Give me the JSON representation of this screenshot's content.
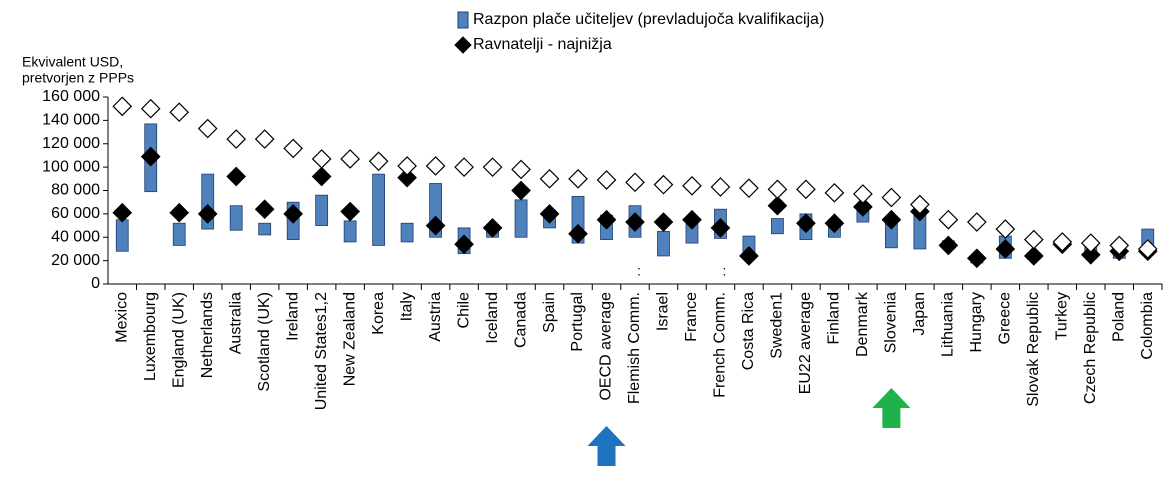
{
  "chart_data": {
    "type": "range_bar",
    "y_axis_title": [
      "Ekvivalent USD,",
      "pretvorjen z  PPPs"
    ],
    "categories": [
      "Mexico",
      "Luxembourg",
      "England (UK)",
      "Netherlands",
      "Australia",
      "Scotland (UK)",
      "Ireland",
      "United States1,2",
      "New Zealand",
      "Korea",
      "Italy",
      "Austria",
      "Chile",
      "Iceland",
      "Canada",
      "Spain",
      "Portugal",
      "OECD average",
      "Flemish Comm.",
      "Israel",
      "France",
      "French Comm.",
      "Costa Rica",
      "Sweden1",
      "EU22 average",
      "Finland",
      "Denmark",
      "Slovenia",
      "Japan",
      "Lithuania",
      "Hungary",
      "Greece",
      "Slovak Republic",
      "Turkey",
      "Czech Republic",
      "Poland",
      "Colombia"
    ],
    "category_notes": [
      null,
      null,
      null,
      null,
      null,
      null,
      null,
      null,
      null,
      null,
      null,
      null,
      null,
      null,
      null,
      null,
      null,
      null,
      ":",
      null,
      null,
      ":",
      null,
      null,
      null,
      null,
      null,
      null,
      null,
      null,
      null,
      null,
      null,
      null,
      null,
      null,
      null
    ],
    "series": [
      {
        "name": "Razpon plače učiteljev (prevladujoča kvalifikacija)",
        "kind": "range",
        "color": "#4f81bd",
        "values": [
          [
            28000,
            55000
          ],
          [
            79000,
            137000
          ],
          [
            33000,
            52000
          ],
          [
            47000,
            94000
          ],
          [
            46000,
            67000
          ],
          [
            42000,
            52000
          ],
          [
            38000,
            70000
          ],
          [
            50000,
            76000
          ],
          [
            36000,
            54000
          ],
          [
            33000,
            94000
          ],
          [
            36000,
            52000
          ],
          [
            40000,
            86000
          ],
          [
            26000,
            48000
          ],
          [
            40000,
            48000
          ],
          [
            40000,
            72000
          ],
          [
            48000,
            63000
          ],
          [
            35000,
            75000
          ],
          [
            38000,
            59000
          ],
          [
            40000,
            67000
          ],
          [
            24000,
            45000
          ],
          [
            35000,
            53000
          ],
          [
            39000,
            64000
          ],
          [
            24000,
            41000
          ],
          [
            43000,
            56000
          ],
          [
            38000,
            60000
          ],
          [
            40000,
            55000
          ],
          [
            53000,
            63000
          ],
          [
            31000,
            52000
          ],
          [
            30000,
            64000
          ],
          [
            30000,
            37000
          ],
          [
            18000,
            25000
          ],
          [
            22000,
            41000
          ],
          [
            21000,
            27000
          ],
          [
            33000,
            35000
          ],
          [
            25000,
            34000
          ],
          [
            22000,
            34000
          ],
          [
            25000,
            47000
          ]
        ]
      },
      {
        "name": "Ravnatelji - najnižja",
        "kind": "diamond",
        "color": "#000000",
        "values": [
          61000,
          109000,
          61000,
          60000,
          92000,
          64000,
          60000,
          92000,
          62000,
          null,
          91000,
          50000,
          34000,
          48000,
          80000,
          60000,
          43000,
          55000,
          53000,
          53000,
          55000,
          48000,
          24000,
          67000,
          52000,
          52000,
          66000,
          55000,
          62000,
          33000,
          22000,
          30000,
          24000,
          34000,
          25000,
          28000,
          28000
        ]
      },
      {
        "kind": "diamond",
        "color": "#ffffff",
        "values": [
          152000,
          150000,
          147000,
          133000,
          124000,
          124000,
          116000,
          107000,
          107000,
          105000,
          101000,
          101000,
          100000,
          100000,
          98000,
          90000,
          90000,
          89000,
          87000,
          85000,
          84000,
          83000,
          82000,
          81000,
          81000,
          78000,
          77000,
          74000,
          68000,
          55000,
          53000,
          47000,
          38000,
          36000,
          35000,
          33000,
          30000
        ]
      }
    ],
    "ylim": [
      0,
      160000
    ],
    "yticks": [
      0,
      {
        "value": 20000,
        "label": "20 000"
      },
      {
        "value": 40000,
        "label": "40 000"
      },
      {
        "value": 60000,
        "label": "60 000"
      },
      {
        "value": 80000,
        "label": "80 000"
      },
      {
        "value": 100000,
        "label": "100 000"
      },
      {
        "value": 120000,
        "label": "120 000"
      },
      {
        "value": 140000,
        "label": "140 000"
      },
      {
        "value": 160000,
        "label": "160 000"
      }
    ]
  }
}
